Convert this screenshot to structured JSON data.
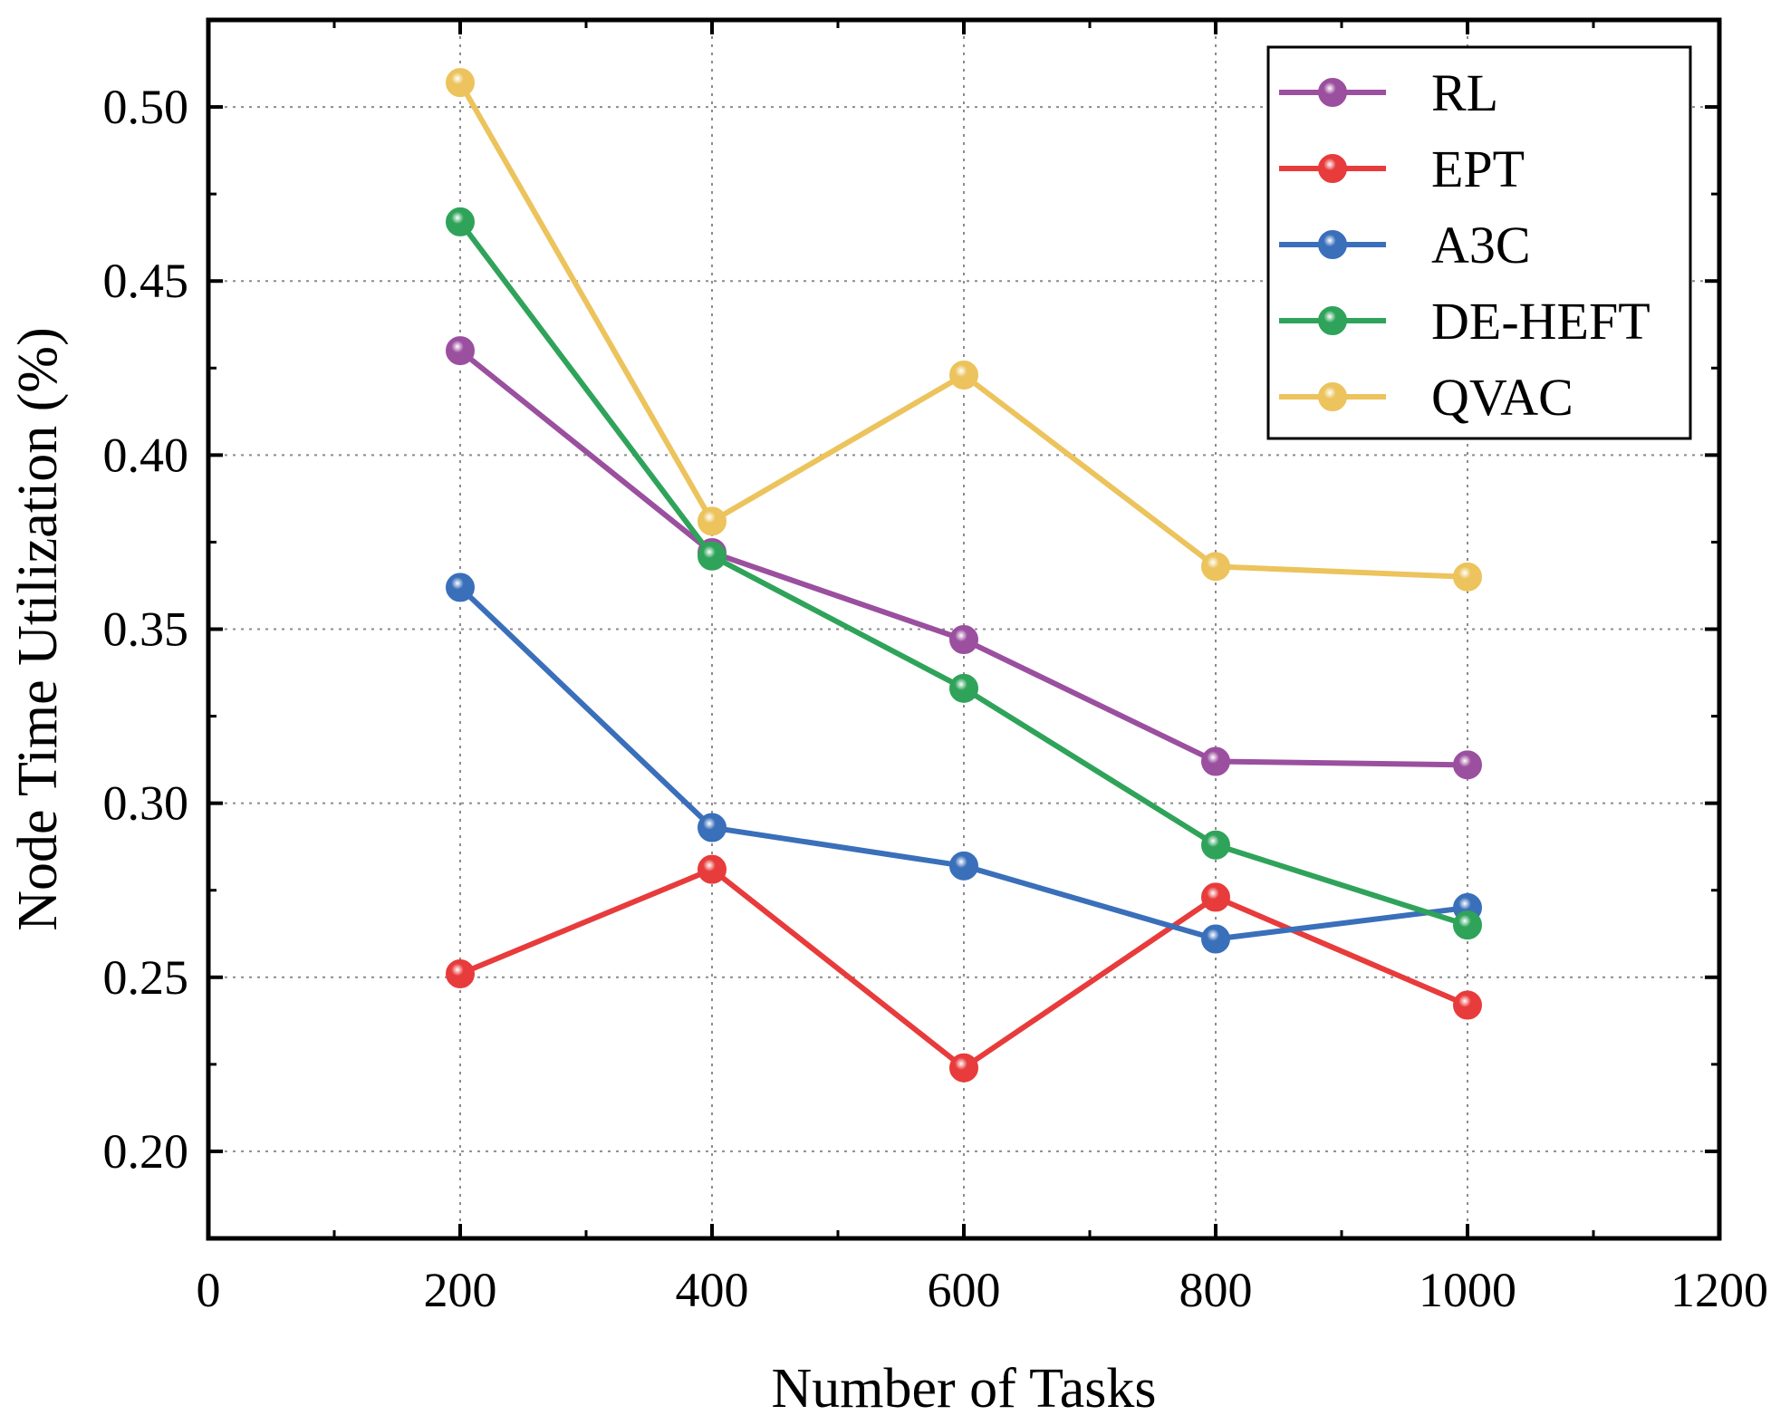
{
  "chart_data": {
    "type": "line",
    "title": "",
    "xlabel": "Number of Tasks",
    "ylabel": "Node Time Utilization (%)",
    "xlim": [
      0,
      1200
    ],
    "ylim": [
      0.175,
      0.525
    ],
    "xticks": [
      0,
      200,
      400,
      600,
      800,
      1000,
      1200
    ],
    "xtick_labels": [
      "0",
      "200",
      "400",
      "600",
      "800",
      "1000",
      "1200"
    ],
    "yticks": [
      0.2,
      0.25,
      0.3,
      0.35,
      0.4,
      0.45,
      0.5
    ],
    "ytick_labels": [
      "0.20",
      "0.25",
      "0.30",
      "0.35",
      "0.40",
      "0.45",
      "0.50"
    ],
    "grid": true,
    "legend_position": "top-right",
    "x": [
      200,
      400,
      600,
      800,
      1000
    ],
    "series": [
      {
        "name": "RL",
        "color": "#9b4f9f",
        "values": [
          0.43,
          0.372,
          0.347,
          0.312,
          0.311
        ]
      },
      {
        "name": "EPT",
        "color": "#e83b3b",
        "values": [
          0.251,
          0.281,
          0.224,
          0.273,
          0.242
        ]
      },
      {
        "name": "A3C",
        "color": "#3a6fba",
        "values": [
          0.362,
          0.293,
          0.282,
          0.261,
          0.27
        ]
      },
      {
        "name": "DE-HEFT",
        "color": "#2fa35a",
        "values": [
          0.467,
          0.371,
          0.333,
          0.288,
          0.265
        ]
      },
      {
        "name": "QVAC",
        "color": "#ecc35c",
        "values": [
          0.507,
          0.381,
          0.423,
          0.368,
          0.365
        ]
      }
    ]
  }
}
